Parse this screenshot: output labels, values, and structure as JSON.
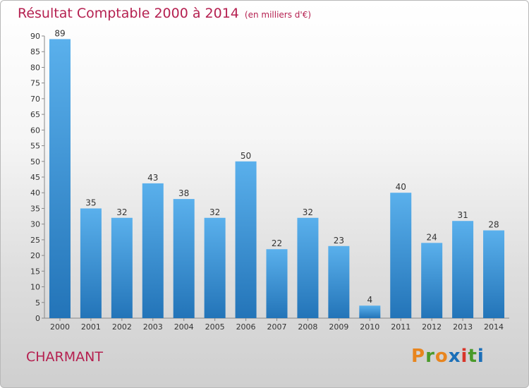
{
  "chart_data": {
    "type": "bar",
    "title": "Résultat Comptable 2000 à 2014",
    "subtitle": "(en milliers d'€)",
    "categories": [
      "2000",
      "2001",
      "2002",
      "2003",
      "2004",
      "2005",
      "2006",
      "2007",
      "2008",
      "2009",
      "2010",
      "2011",
      "2012",
      "2013",
      "2014"
    ],
    "values": [
      89,
      35,
      32,
      43,
      38,
      32,
      50,
      22,
      32,
      23,
      4,
      40,
      24,
      31,
      28
    ],
    "ylim": [
      0,
      90
    ],
    "yticks": [
      0,
      5,
      10,
      15,
      20,
      25,
      30,
      35,
      40,
      45,
      50,
      55,
      60,
      65,
      70,
      75,
      80,
      85,
      90
    ],
    "xlabel": "",
    "ylabel": "",
    "grid": false,
    "bar_color": "#3d93d8"
  },
  "footer": {
    "place": "CHARMANT",
    "logo_letters": [
      "P",
      "r",
      "o",
      "x",
      "i",
      "t",
      "i"
    ],
    "logo_colors": [
      "#e8851e",
      "#4a9a2a",
      "#e8851e",
      "#1b6fb8",
      "#d8362a",
      "#4a9a2a",
      "#1b6fb8"
    ]
  }
}
